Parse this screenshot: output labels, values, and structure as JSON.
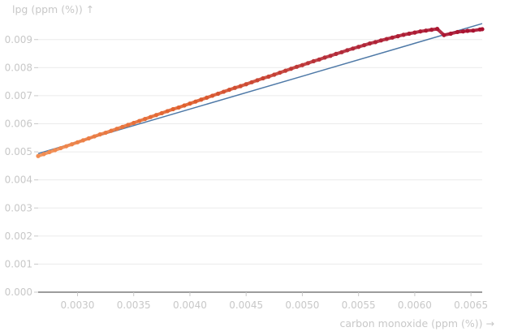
{
  "chart_data": {
    "type": "scatter",
    "title": "",
    "xlabel": "carbon monoxide (ppm (%)) →",
    "ylabel": "lpg (ppm (%)) ↑",
    "xlim": [
      0.00265,
      0.0066
    ],
    "ylim": [
      0.0,
      0.0096
    ],
    "x_ticks": [
      "0.0030",
      "0.0035",
      "0.0040",
      "0.0045",
      "0.0050",
      "0.0055",
      "0.0060",
      "0.0065"
    ],
    "y_ticks": [
      "0.000",
      "0.001",
      "0.002",
      "0.003",
      "0.004",
      "0.005",
      "0.006",
      "0.007",
      "0.008",
      "0.009"
    ],
    "grid": "horizontal",
    "color_scale": [
      "#f28e52",
      "#e0602e",
      "#b32b3a",
      "#a8102f"
    ],
    "trend_line": {
      "color": "#4e79a7",
      "x": [
        0.00265,
        0.0066
      ],
      "y": [
        0.00494,
        0.00957
      ]
    },
    "series": [
      {
        "x": [
          0.00265,
          0.0027,
          0.00275,
          0.0028,
          0.00285,
          0.0029,
          0.00295,
          0.003,
          0.00305,
          0.0031,
          0.00315,
          0.0032,
          0.00325,
          0.0033,
          0.00335,
          0.0034,
          0.00345,
          0.0035,
          0.00355,
          0.0036,
          0.00365,
          0.0037,
          0.00375,
          0.0038,
          0.00385,
          0.0039,
          0.00395,
          0.004,
          0.00405,
          0.0041,
          0.00415,
          0.0042,
          0.00425,
          0.0043,
          0.00435,
          0.0044,
          0.00445,
          0.0045,
          0.00455,
          0.0046,
          0.00465,
          0.0047,
          0.00475,
          0.0048,
          0.00485,
          0.0049,
          0.00495,
          0.005,
          0.00505,
          0.0051,
          0.00515,
          0.0052,
          0.00525,
          0.0053,
          0.00535,
          0.0054,
          0.00545,
          0.0055,
          0.00555,
          0.0056,
          0.00565,
          0.0057,
          0.00575,
          0.0058,
          0.00585,
          0.0059,
          0.00595,
          0.006,
          0.00605,
          0.0061,
          0.00615,
          0.0062,
          0.00626,
          0.00632,
          0.00638,
          0.00643,
          0.00647,
          0.00652,
          0.00658,
          0.0066
        ],
        "y": [
          0.00485,
          0.00492,
          0.00499,
          0.00506,
          0.00513,
          0.0052,
          0.00527,
          0.00534,
          0.00541,
          0.00548,
          0.00555,
          0.00562,
          0.00568,
          0.00575,
          0.00582,
          0.00589,
          0.00596,
          0.00603,
          0.0061,
          0.00617,
          0.00624,
          0.00631,
          0.00638,
          0.00645,
          0.00652,
          0.00658,
          0.00665,
          0.00672,
          0.00679,
          0.00686,
          0.00693,
          0.007,
          0.00707,
          0.00714,
          0.00721,
          0.00728,
          0.00734,
          0.00741,
          0.00748,
          0.00755,
          0.00762,
          0.00768,
          0.00775,
          0.00782,
          0.00789,
          0.00796,
          0.00803,
          0.00809,
          0.00816,
          0.00823,
          0.00829,
          0.00836,
          0.00842,
          0.00849,
          0.00855,
          0.00862,
          0.00868,
          0.00874,
          0.0088,
          0.00886,
          0.00891,
          0.00897,
          0.00902,
          0.00907,
          0.00912,
          0.00917,
          0.00921,
          0.00925,
          0.00929,
          0.00932,
          0.00935,
          0.00938,
          0.00916,
          0.00921,
          0.00927,
          0.00929,
          0.00931,
          0.00932,
          0.00936,
          0.00937
        ]
      }
    ]
  }
}
